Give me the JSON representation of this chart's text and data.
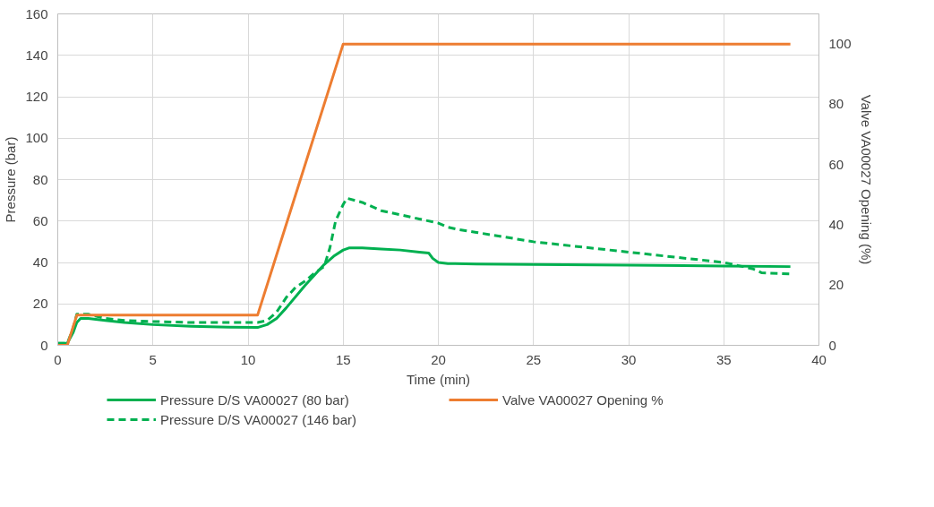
{
  "chart_data": {
    "type": "line",
    "xlabel": "Time (min)",
    "ylabel": "Pressure (bar)",
    "y2label": "Valve VA00027 Opening (%)",
    "xlim": [
      0,
      40
    ],
    "xticks": [
      0,
      5,
      10,
      15,
      20,
      25,
      30,
      35,
      40
    ],
    "ylim": [
      0,
      160
    ],
    "yticks": [
      0,
      20,
      40,
      60,
      80,
      100,
      120,
      140,
      160
    ],
    "y2lim": [
      0,
      110
    ],
    "y2ticks": [
      0,
      20,
      40,
      60,
      80,
      100
    ],
    "grid": true,
    "legend": "bottom",
    "marker": "none",
    "series": [
      {
        "name": "Pressure D/S VA00027 (80 bar)",
        "color": "#00b050",
        "line_style": "solid",
        "x": [
          0,
          0.5,
          0.8,
          1.0,
          1.2,
          1.6,
          2.5,
          3.5,
          5,
          7,
          9,
          10.5,
          11,
          11.5,
          12,
          13,
          14,
          14.5,
          15,
          15.3,
          16,
          17,
          18,
          19,
          19.5,
          19.7,
          20,
          20.5,
          22,
          25,
          30,
          35,
          38.5
        ],
        "values": [
          1,
          1,
          6,
          11,
          13,
          13,
          12,
          11,
          10,
          9.2,
          8.8,
          8.6,
          10,
          13,
          18,
          29,
          39,
          43,
          46,
          47,
          47,
          46.5,
          46,
          45,
          44.5,
          42,
          40,
          39.5,
          39.2,
          39,
          38.7,
          38.3,
          38
        ]
      },
      {
        "name": "Pressure D/S VA00027 (146 bar)",
        "color": "#00b050",
        "line_style": "dashed",
        "x": [
          0,
          0.5,
          0.8,
          1.0,
          1.2,
          1.6,
          2.5,
          3.5,
          5,
          7,
          9,
          10.5,
          11,
          11.5,
          12,
          12.5,
          13,
          13.5,
          14,
          14.3,
          14.6,
          15,
          15.2,
          16,
          17,
          18,
          19,
          20,
          20.5,
          21,
          22,
          25,
          30,
          35,
          36.5,
          37,
          38.5
        ],
        "values": [
          1,
          1,
          8,
          15,
          15,
          15,
          13,
          12,
          11.5,
          11,
          11,
          11,
          12,
          16,
          23,
          28,
          31,
          35,
          38,
          47,
          60,
          68,
          71,
          69,
          65,
          63,
          61,
          59,
          57,
          56,
          54.5,
          50,
          45,
          40,
          37,
          35,
          34.5
        ]
      },
      {
        "name": "Valve VA00027 Opening %",
        "color": "#ed7d31",
        "line_style": "solid",
        "axis": "y2",
        "x": [
          0,
          0.5,
          1.0,
          10.5,
          15,
          38.5
        ],
        "values": [
          0,
          0,
          10,
          10,
          100,
          100
        ]
      }
    ]
  }
}
